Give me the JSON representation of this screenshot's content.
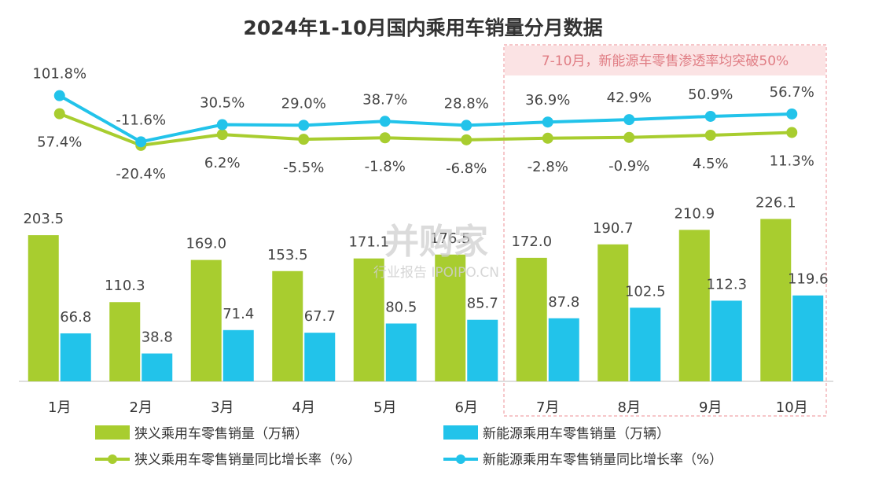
{
  "chart_data": {
    "type": "bar",
    "title": "2024年1-10月国内乘用车销量分月数据",
    "categories": [
      "1月",
      "2月",
      "3月",
      "4月",
      "5月",
      "6月",
      "7月",
      "8月",
      "9月",
      "10月"
    ],
    "series": [
      {
        "name": "狭义乘用车零售销量（万辆）",
        "kind": "bar",
        "color": "#a8cd2f",
        "values": [
          203.5,
          110.3,
          169.0,
          153.5,
          171.1,
          176.5,
          172.0,
          190.7,
          210.9,
          226.1
        ],
        "labels": [
          "203.5",
          "110.3",
          "169.0",
          "153.5",
          "171.1",
          "176.5",
          "172.0",
          "190.7",
          "210.9",
          "226.1"
        ]
      },
      {
        "name": "新能源乘用车零售销量（万辆）",
        "kind": "bar",
        "color": "#22c3ea",
        "values": [
          66.8,
          38.8,
          71.4,
          67.7,
          80.5,
          85.7,
          87.8,
          102.5,
          112.3,
          119.6
        ],
        "labels": [
          "66.8",
          "38.8",
          "71.4",
          "67.7",
          "80.5",
          "85.7",
          "87.8",
          "102.5",
          "112.3",
          "119.6"
        ]
      },
      {
        "name": "狭义乘用车零售销量同比增长率（%）",
        "kind": "line",
        "color": "#a8cd2f",
        "values": [
          57.4,
          -20.4,
          6.2,
          -5.5,
          -1.8,
          -6.8,
          -2.8,
          -0.9,
          4.5,
          11.3
        ],
        "labels": [
          "57.4%",
          "-20.4%",
          "6.2%",
          "-5.5%",
          "-1.8%",
          "-6.8%",
          "-2.8%",
          "-0.9%",
          "4.5%",
          "11.3%"
        ]
      },
      {
        "name": "新能源乘用车零售销量同比增长率（%）",
        "kind": "line",
        "color": "#22c3ea",
        "values": [
          101.8,
          -11.6,
          30.5,
          29.0,
          38.7,
          28.8,
          36.9,
          42.9,
          50.9,
          56.7
        ],
        "labels": [
          "101.8%",
          "-11.6%",
          "30.5%",
          "29.0%",
          "38.7%",
          "28.8%",
          "36.9%",
          "42.9%",
          "50.9%",
          "56.7%"
        ]
      }
    ],
    "highlight": {
      "from": "7月",
      "to": "10月",
      "text": "7-10月，新能源车零售渗透率均突破50%"
    },
    "legend_position": "bottom",
    "grid": false
  },
  "watermark": {
    "brand": "并购家",
    "sub": "行业报告 IPOIPO.CN"
  }
}
